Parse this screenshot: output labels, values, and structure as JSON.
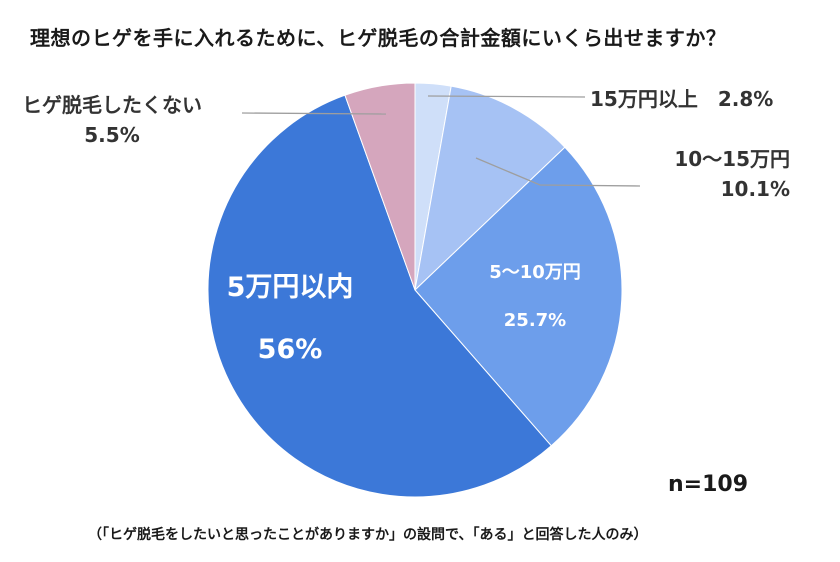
{
  "title": "理想のヒゲを手に入れるために、ヒゲ脱毛の合計金額にいくら出せますか？",
  "sample": "n=109",
  "note": "（「ヒゲ脱毛をしたいと思ったことがありますか」の設問で、「ある」と回答した人のみ）",
  "chart_data": {
    "type": "pie",
    "title": "理想のヒゲを手に入れるために、ヒゲ脱毛の合計金額にいくら出せますか？",
    "start": "12 o'clock, clockwise",
    "slices": [
      {
        "label": "15万円以上",
        "value": 2.8,
        "display": "2.8%",
        "color": "#cfdff9"
      },
      {
        "label": "10〜15万円",
        "value": 10.1,
        "display": "10.1%",
        "color": "#a6c2f4"
      },
      {
        "label": "5〜10万円",
        "value": 25.7,
        "display": "25.7%",
        "color": "#6d9eeb"
      },
      {
        "label": "5万円以内",
        "value": 56,
        "display": "56%",
        "color": "#3c78d8"
      },
      {
        "label": "ヒゲ脱毛したくない",
        "value": 5.5,
        "display": "5.5%",
        "color": "#d5a6bd"
      }
    ]
  }
}
